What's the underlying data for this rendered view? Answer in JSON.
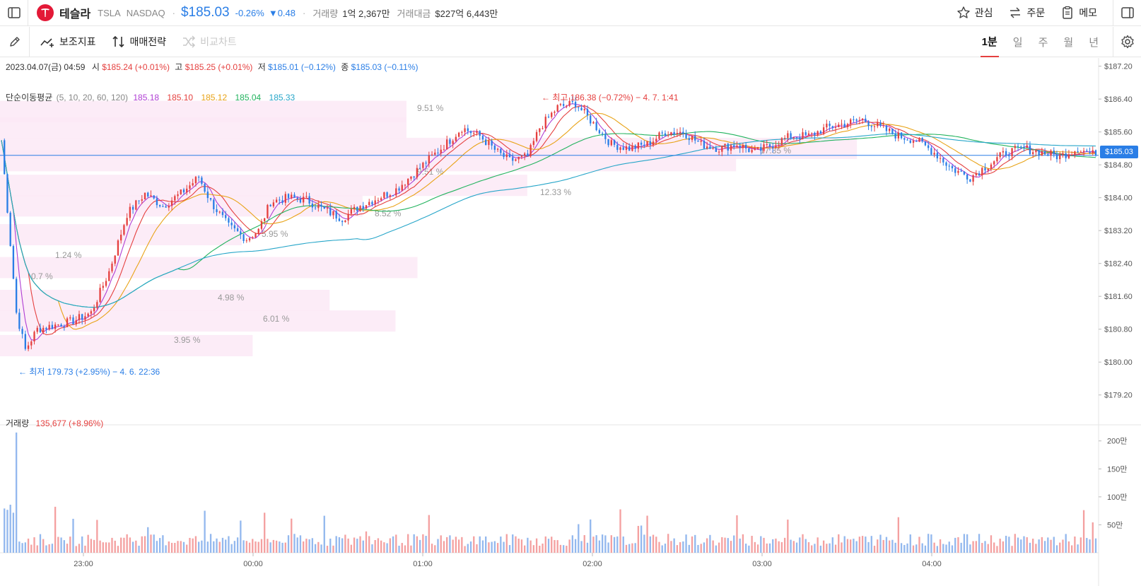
{
  "header": {
    "company_name": "테슬라",
    "ticker": "TSLA",
    "exchange": "NASDAQ",
    "price": "$185.03",
    "change_pct": "-0.26%",
    "change_abs": "▼0.48",
    "volume_label": "거래량",
    "volume_value": "1억 2,367만",
    "amount_label": "거래대금",
    "amount_value": "$227억 6,443만",
    "actions": [
      "관심",
      "주문",
      "메모"
    ]
  },
  "toolbar": {
    "indicator_label": "보조지표",
    "strategy_label": "매매전략",
    "compare_label": "비교차트",
    "timeframes": [
      "1분",
      "일",
      "주",
      "월",
      "년"
    ],
    "active_timeframe": "1분"
  },
  "legend": {
    "datetime": "2023.04.07(금) 04:59",
    "open_label": "시",
    "open_value": "$185.24 (+0.01%)",
    "high_label": "고",
    "high_value": "$185.25 (+0.01%)",
    "low_label": "저",
    "low_value": "$185.01 (−0.12%)",
    "close_label": "종",
    "close_value": "$185.03 (−0.11%)",
    "ma_label": "단순이동평균",
    "ma_params": "(5, 10, 20, 60, 120)",
    "ma_values": [
      "185.18",
      "185.10",
      "185.12",
      "185.04",
      "185.33"
    ],
    "ma_colors": [
      "#b03fd4",
      "#e5403f",
      "#e8a317",
      "#22b35e",
      "#27a6c9"
    ],
    "volume_label": "거래량",
    "volume_value": "135,677 (+8.96%)"
  },
  "annotations": {
    "high": "← 최고 186.38 (−0.72%) − 4. 7. 1:41",
    "low": "← 최저 179.73 (+2.95%) − 4. 6. 22:36",
    "current_price_tag": "$185.03"
  },
  "volume_profile": [
    "9.51 %",
    "9.51 %",
    "12.33 %",
    "17.35 %",
    "8.52 %",
    "5.95 %",
    "1.24 %",
    "0.7 %",
    "4.98 %",
    "6.01 %",
    "3.95 %"
  ],
  "chart_data": {
    "type": "candlestick",
    "y_ticks": [
      "$187.20",
      "$186.40",
      "$185.60",
      "$184.80",
      "$184.00",
      "$183.20",
      "$182.40",
      "$181.60",
      "$180.80",
      "$180.00",
      "$179.20"
    ],
    "ylim": [
      178.8,
      187.4
    ],
    "x_ticks": [
      "23:00",
      "00:00",
      "01:00",
      "02:00",
      "03:00",
      "04:00"
    ],
    "volume_ticks": [
      "200만",
      "150만",
      "100만",
      "50만"
    ],
    "current_price": 185.03,
    "high": 186.38,
    "low": 179.73,
    "price_path": [
      [
        0,
        185.4
      ],
      [
        5,
        181.2
      ],
      [
        8,
        180.3
      ],
      [
        12,
        180.8
      ],
      [
        18,
        180.9
      ],
      [
        24,
        181.0
      ],
      [
        30,
        181.2
      ],
      [
        36,
        182.2
      ],
      [
        42,
        183.6
      ],
      [
        48,
        184.1
      ],
      [
        54,
        183.8
      ],
      [
        60,
        184.1
      ],
      [
        66,
        184.5
      ],
      [
        70,
        183.9
      ],
      [
        76,
        183.3
      ],
      [
        82,
        183.0
      ],
      [
        86,
        183.2
      ],
      [
        90,
        183.9
      ],
      [
        96,
        184.0
      ],
      [
        102,
        183.95
      ],
      [
        108,
        183.7
      ],
      [
        114,
        183.5
      ],
      [
        120,
        183.8
      ],
      [
        126,
        184.0
      ],
      [
        132,
        184.2
      ],
      [
        138,
        184.6
      ],
      [
        144,
        185.0
      ],
      [
        150,
        185.4
      ],
      [
        154,
        185.7
      ],
      [
        160,
        185.5
      ],
      [
        166,
        185.1
      ],
      [
        170,
        184.9
      ],
      [
        176,
        185.0
      ],
      [
        180,
        185.7
      ],
      [
        186,
        186.2
      ],
      [
        192,
        186.3
      ],
      [
        198,
        185.8
      ],
      [
        204,
        185.3
      ],
      [
        210,
        185.2
      ],
      [
        216,
        185.3
      ],
      [
        222,
        185.6
      ],
      [
        228,
        185.6
      ],
      [
        234,
        185.3
      ],
      [
        240,
        185.2
      ],
      [
        246,
        185.3
      ],
      [
        252,
        185.1
      ],
      [
        258,
        185.3
      ],
      [
        264,
        185.5
      ],
      [
        270,
        185.5
      ],
      [
        276,
        185.7
      ],
      [
        282,
        185.8
      ],
      [
        288,
        185.9
      ],
      [
        294,
        185.7
      ],
      [
        300,
        185.5
      ],
      [
        306,
        185.4
      ],
      [
        312,
        185.1
      ],
      [
        318,
        184.7
      ],
      [
        324,
        184.5
      ],
      [
        330,
        184.8
      ],
      [
        336,
        185.1
      ],
      [
        342,
        185.2
      ],
      [
        348,
        185.1
      ],
      [
        354,
        185.0
      ],
      [
        360,
        185.2
      ],
      [
        366,
        185.03
      ]
    ]
  }
}
